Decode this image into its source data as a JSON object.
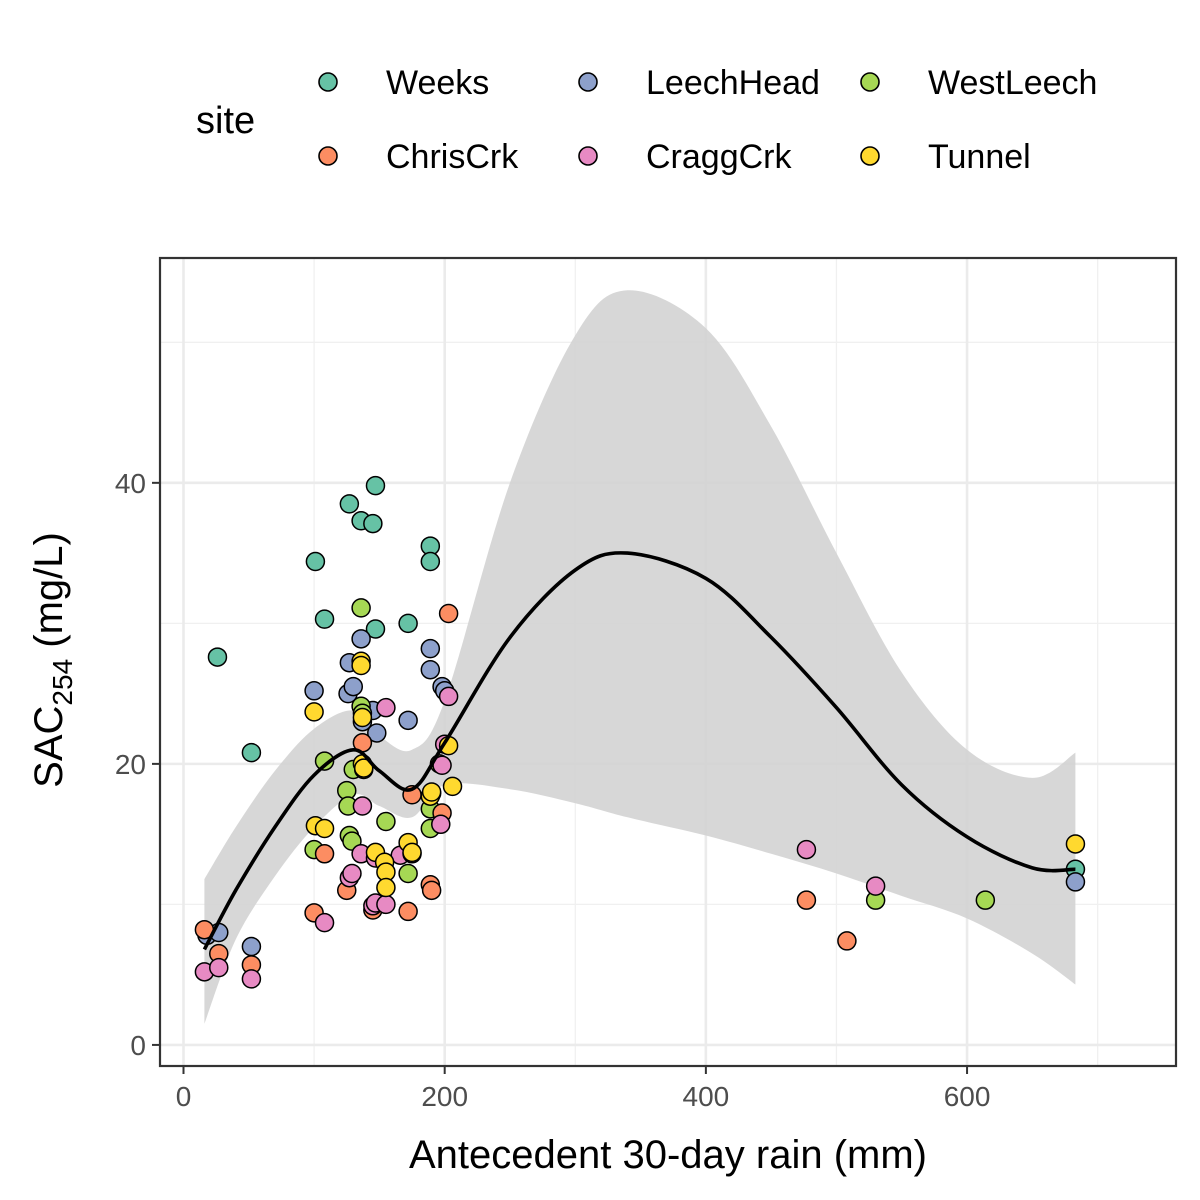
{
  "chart_data": {
    "type": "scatter",
    "xlabel": "Antecedent 30-day rain (mm)",
    "ylabel": {
      "main": "SAC",
      "sub": "254",
      "unit": " (mg/L)"
    },
    "xlim": [
      -18,
      760
    ],
    "ylim": [
      -1.5,
      56
    ],
    "x_ticks": [
      0,
      200,
      400,
      600
    ],
    "y_ticks": [
      0,
      20,
      40
    ],
    "grid": true,
    "legend": {
      "title": "site",
      "position": "top",
      "entries": [
        {
          "name": "Weeks",
          "color": "#66c2a5"
        },
        {
          "name": "LeechHead",
          "color": "#8da0cb"
        },
        {
          "name": "WestLeech",
          "color": "#a6d854"
        },
        {
          "name": "ChrisCrk",
          "color": "#fc8d62"
        },
        {
          "name": "CraggCrk",
          "color": "#e78ac3"
        },
        {
          "name": "Tunnel",
          "color": "#ffd92f"
        }
      ]
    },
    "smooth": {
      "method": "loess",
      "color": "#000000",
      "ribbon_color": "#d3d3d3",
      "x": [
        16,
        40,
        70,
        100,
        130,
        150,
        175,
        200,
        250,
        300,
        340,
        400,
        450,
        500,
        550,
        600,
        650,
        683
      ],
      "y": [
        6.8,
        11.0,
        15.5,
        19.2,
        21.0,
        19.5,
        18.2,
        21.5,
        29.0,
        33.8,
        35.0,
        33.2,
        29.0,
        24.0,
        18.5,
        14.8,
        12.6,
        12.5
      ],
      "lower": [
        1.5,
        7.5,
        12.0,
        15.5,
        17.8,
        17.0,
        16.2,
        18.5,
        18.2,
        17.2,
        16.2,
        14.9,
        13.6,
        12.2,
        10.6,
        9.0,
        6.5,
        4.3
      ],
      "upper": [
        11.8,
        15.5,
        19.5,
        22.5,
        23.8,
        22.0,
        21.0,
        24.5,
        40.0,
        50.5,
        53.7,
        51.0,
        44.0,
        35.0,
        26.5,
        21.0,
        19.0,
        20.8
      ]
    },
    "series": [
      {
        "name": "Weeks",
        "x": [
          26,
          52,
          101,
          108,
          127,
          136,
          145,
          147,
          147,
          172,
          189,
          189,
          683
        ],
        "y": [
          27.6,
          20.8,
          34.4,
          30.3,
          38.5,
          37.3,
          37.1,
          39.8,
          29.6,
          30.0,
          35.5,
          34.4,
          12.5
        ]
      },
      {
        "name": "LeechHead",
        "x": [
          18,
          27,
          52,
          100,
          126,
          127,
          130,
          136,
          137,
          145,
          148,
          172,
          189,
          189,
          198,
          200,
          683
        ],
        "y": [
          7.8,
          8.0,
          7.0,
          25.2,
          25.0,
          27.2,
          25.5,
          28.9,
          23.0,
          23.8,
          22.2,
          23.1,
          28.2,
          26.7,
          25.5,
          25.2,
          11.6
        ]
      },
      {
        "name": "WestLeech",
        "x": [
          100,
          108,
          125,
          126,
          127,
          129,
          130,
          136,
          136,
          137,
          138,
          155,
          172,
          189,
          189,
          190,
          196,
          530,
          614
        ],
        "y": [
          13.9,
          20.2,
          18.1,
          17.0,
          14.9,
          14.5,
          19.6,
          31.1,
          24.1,
          23.6,
          19.6,
          15.9,
          12.2,
          15.4,
          16.8,
          17.9,
          20.0,
          10.3,
          10.3
        ]
      },
      {
        "name": "ChrisCrk",
        "x": [
          16,
          27,
          52,
          100,
          108,
          125,
          137,
          145,
          172,
          175,
          189,
          190,
          198,
          203,
          477,
          508
        ],
        "y": [
          8.2,
          6.5,
          5.7,
          9.4,
          13.6,
          11.0,
          21.5,
          9.6,
          9.5,
          17.8,
          11.4,
          11.0,
          16.5,
          30.7,
          10.3,
          7.4
        ]
      },
      {
        "name": "CraggCrk",
        "x": [
          16,
          27,
          52,
          108,
          127,
          129,
          136,
          137,
          145,
          147,
          147,
          155,
          155,
          166,
          175,
          197,
          198,
          200,
          203,
          477,
          530
        ],
        "y": [
          5.2,
          5.5,
          4.7,
          8.7,
          11.9,
          12.2,
          13.6,
          17.0,
          9.9,
          10.1,
          13.3,
          10.0,
          24.0,
          13.5,
          13.6,
          15.7,
          19.9,
          21.4,
          24.8,
          13.9,
          11.3
        ]
      },
      {
        "name": "Tunnel",
        "x": [
          100,
          101,
          108,
          136,
          136,
          137,
          137,
          138,
          147,
          154,
          155,
          155,
          172,
          175,
          189,
          190,
          203,
          206,
          683
        ],
        "y": [
          23.7,
          15.6,
          15.4,
          27.3,
          27.0,
          23.3,
          20.0,
          19.7,
          13.7,
          13.0,
          12.3,
          11.2,
          14.4,
          13.7,
          17.7,
          18.0,
          21.3,
          18.4,
          14.3
        ]
      }
    ]
  }
}
